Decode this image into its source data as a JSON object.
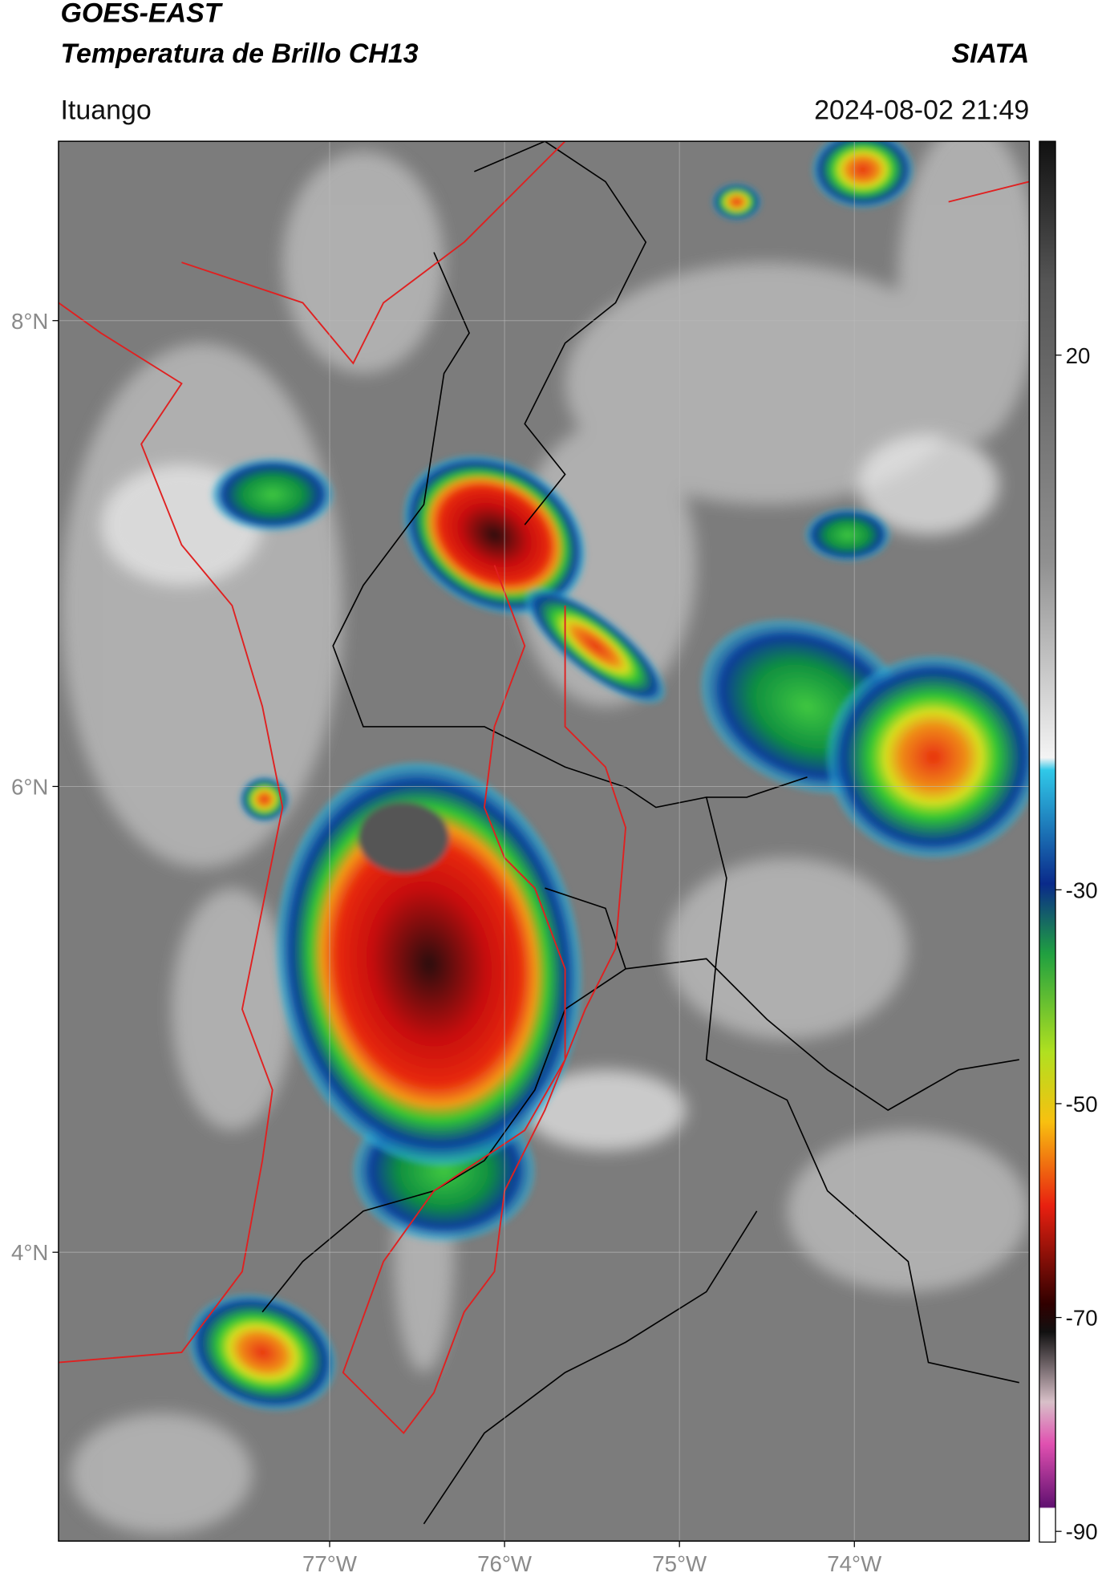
{
  "header": {
    "source": "GOES-EAST",
    "product": "Temperatura de Brillo CH13",
    "agency": "SIATA",
    "location": "Ituango",
    "timestamp": "2024-08-02 21:49"
  },
  "map": {
    "xlim": [
      -78.55,
      -73.0
    ],
    "ylim": [
      2.76,
      8.77
    ],
    "xticks": [
      {
        "value": -77,
        "label": "77°W"
      },
      {
        "value": -76,
        "label": "76°W"
      },
      {
        "value": -75,
        "label": "75°W"
      },
      {
        "value": -74,
        "label": "74°W"
      }
    ],
    "yticks": [
      {
        "value": 8,
        "label": "8°N"
      },
      {
        "value": 6,
        "label": "6°N"
      },
      {
        "value": 4,
        "label": "4°N"
      }
    ],
    "grid": true
  },
  "colorbar": {
    "lim": [
      -91,
      40
    ],
    "ticks": [
      20,
      -30,
      -50,
      -70,
      -90
    ]
  }
}
